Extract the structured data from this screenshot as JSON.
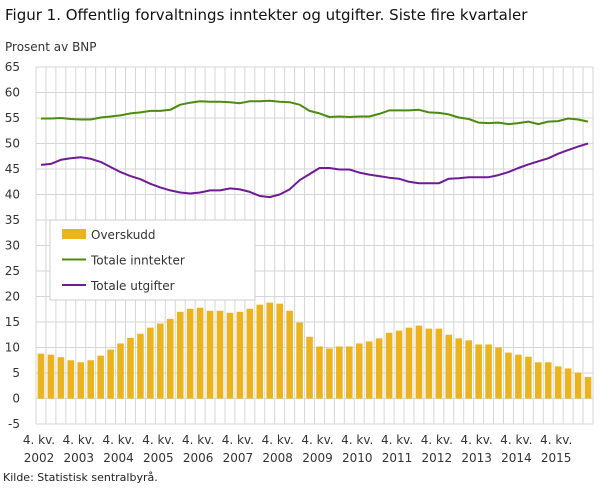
{
  "title": "Figur 1. Offentlig forvaltnings inntekter og utgifter. Siste fire kvartaler",
  "source": "Kilde: Statistisk sentralbyrå.",
  "colors": {
    "overskudd": "#ebb41e",
    "inntekter": "#4b8c0e",
    "utgifter": "#6f1b96",
    "grid": "#d6d6d6"
  },
  "chart_data": {
    "type": "bar+line",
    "ylabel": "Prosent av BNP",
    "ylim": [
      -5,
      65
    ],
    "yticks": [
      -5,
      0,
      5,
      10,
      15,
      20,
      25,
      30,
      35,
      40,
      45,
      50,
      55,
      60,
      65
    ],
    "grid": true,
    "legend_position": "middle-left",
    "x_start": "2002 Q4",
    "x_label_quarter": "4. kv.",
    "x_label_years": [
      "2002",
      "2003",
      "2004",
      "2005",
      "2006",
      "2007",
      "2008",
      "2009",
      "2010",
      "2011",
      "2012",
      "2013",
      "2014",
      "2015"
    ],
    "series": [
      {
        "name": "Overskudd",
        "type": "bar",
        "values": [
          8.8,
          8.6,
          8.1,
          7.5,
          7.1,
          7.5,
          8.4,
          9.6,
          10.8,
          11.9,
          12.7,
          13.9,
          14.7,
          15.6,
          17.0,
          17.6,
          17.8,
          17.2,
          17.2,
          16.8,
          17.0,
          17.6,
          18.4,
          18.8,
          18.6,
          17.2,
          14.9,
          12.1,
          10.2,
          9.8,
          10.2,
          10.2,
          10.8,
          11.2,
          11.8,
          12.9,
          13.3,
          13.9,
          14.3,
          13.7,
          13.7,
          12.5,
          11.8,
          11.4,
          10.6,
          10.6,
          10.0,
          9.0,
          8.6,
          8.2,
          7.1,
          7.1,
          6.3,
          5.9,
          5.1,
          4.2
        ]
      },
      {
        "name": "Totale inntekter",
        "type": "line",
        "values": [
          54.9,
          54.9,
          55.0,
          54.8,
          54.7,
          54.7,
          55.1,
          55.3,
          55.5,
          55.9,
          56.1,
          56.4,
          56.4,
          56.6,
          57.6,
          58.0,
          58.3,
          58.2,
          58.2,
          58.1,
          57.9,
          58.3,
          58.3,
          58.4,
          58.2,
          58.1,
          57.6,
          56.4,
          55.9,
          55.2,
          55.3,
          55.2,
          55.3,
          55.3,
          55.8,
          56.5,
          56.5,
          56.5,
          56.6,
          56.1,
          56.0,
          55.7,
          55.1,
          54.8,
          54.1,
          54.0,
          54.1,
          53.8,
          54.0,
          54.3,
          53.8,
          54.3,
          54.4,
          54.9,
          54.7,
          54.3
        ]
      },
      {
        "name": "Totale utgifter",
        "type": "line",
        "values": [
          45.8,
          46.0,
          46.8,
          47.1,
          47.3,
          47.0,
          46.4,
          45.4,
          44.4,
          43.6,
          43.0,
          42.1,
          41.4,
          40.8,
          40.4,
          40.2,
          40.4,
          40.8,
          40.8,
          41.2,
          41.0,
          40.5,
          39.7,
          39.5,
          40.0,
          41.0,
          42.8,
          44.0,
          45.2,
          45.2,
          44.9,
          44.9,
          44.3,
          43.9,
          43.6,
          43.3,
          43.1,
          42.5,
          42.2,
          42.2,
          42.2,
          43.1,
          43.2,
          43.4,
          43.4,
          43.4,
          43.8,
          44.4,
          45.2,
          45.9,
          46.5,
          47.1,
          48.0,
          48.7,
          49.4,
          50.0
        ]
      }
    ]
  }
}
